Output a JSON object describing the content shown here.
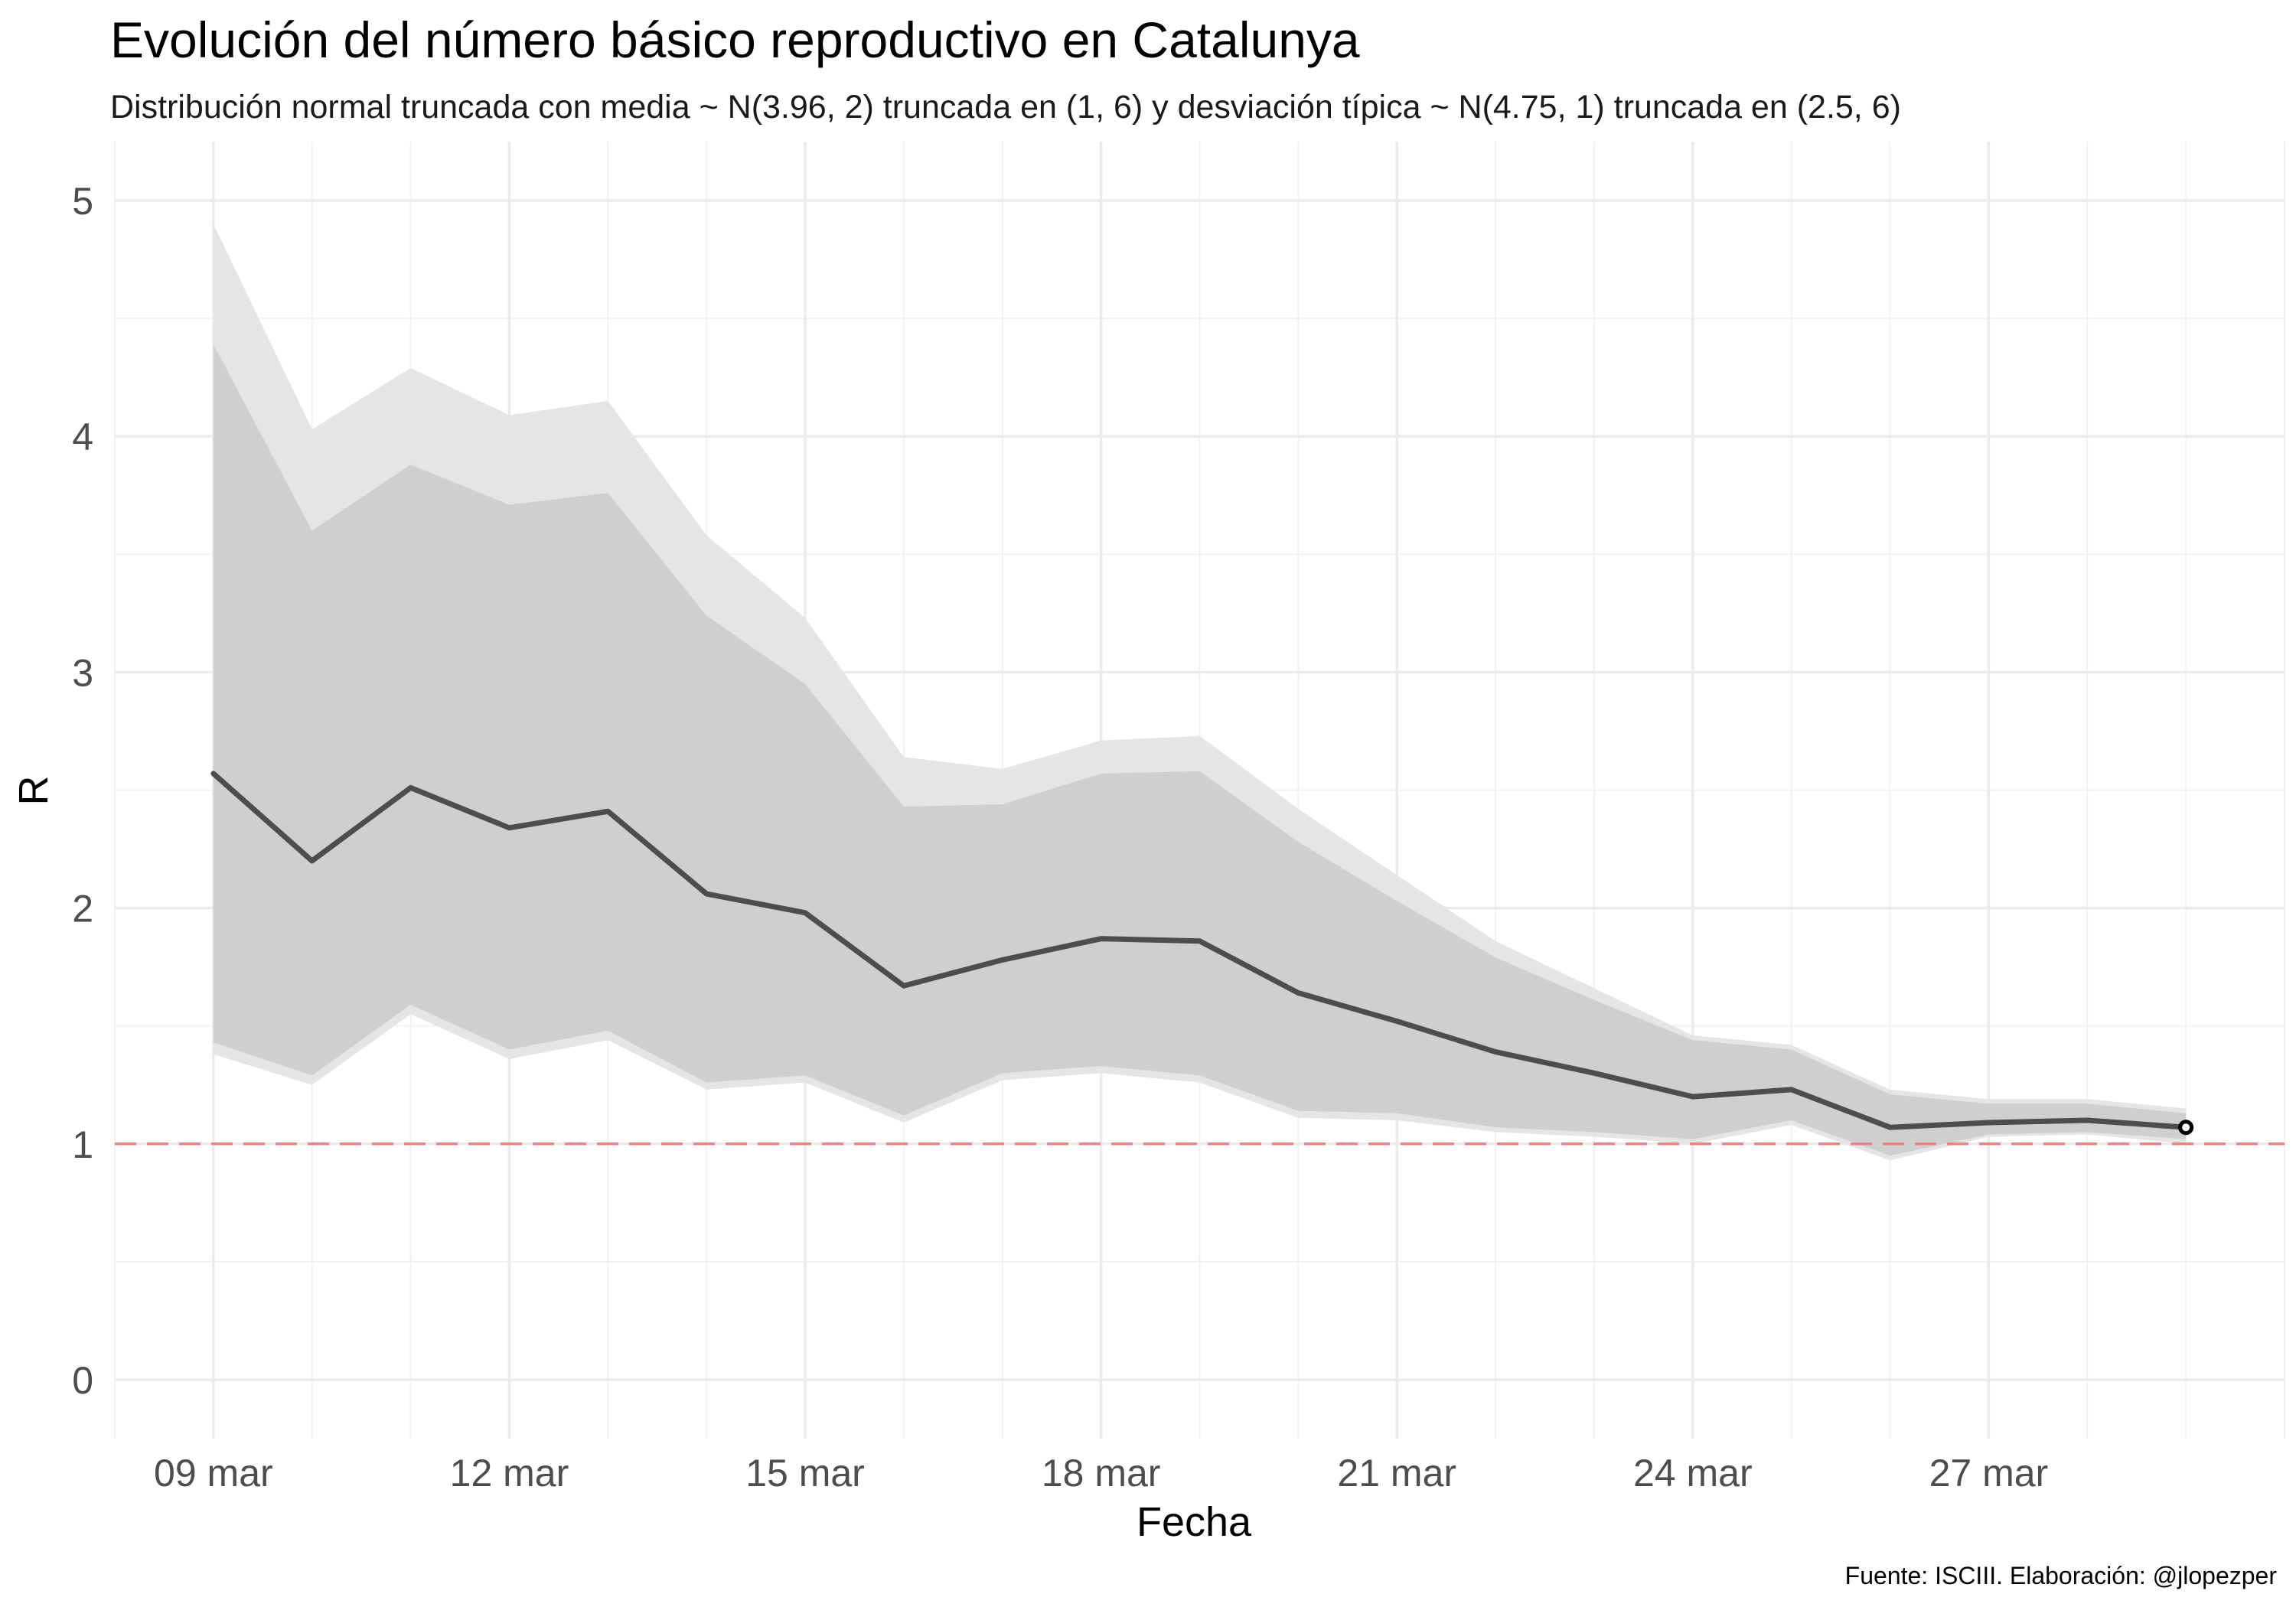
{
  "chart_data": {
    "type": "line",
    "title": "Evolución del número básico reproductivo en Catalunya",
    "subtitle": "Distribución normal truncada con media ~ N(3.96, 2) truncada en (1, 6) y desviación típica ~ N(4.75, 1) truncada en (2.5, 6)",
    "caption": "Fuente: ISCIII. Elaboración: @jlopezper",
    "xlabel": "Fecha",
    "ylabel": "R",
    "x_dates": [
      "2020-03-09",
      "2020-03-10",
      "2020-03-11",
      "2020-03-12",
      "2020-03-13",
      "2020-03-14",
      "2020-03-15",
      "2020-03-16",
      "2020-03-17",
      "2020-03-18",
      "2020-03-19",
      "2020-03-20",
      "2020-03-21",
      "2020-03-22",
      "2020-03-23",
      "2020-03-24",
      "2020-03-25",
      "2020-03-26",
      "2020-03-27",
      "2020-03-28",
      "2020-03-29"
    ],
    "xlim": [
      "2020-03-08",
      "2020-03-30"
    ],
    "ylim": [
      -0.25,
      5.25
    ],
    "x_ticks": [
      {
        "date": "2020-03-09",
        "label": "09 mar"
      },
      {
        "date": "2020-03-12",
        "label": "12 mar"
      },
      {
        "date": "2020-03-15",
        "label": "15 mar"
      },
      {
        "date": "2020-03-18",
        "label": "18 mar"
      },
      {
        "date": "2020-03-21",
        "label": "21 mar"
      },
      {
        "date": "2020-03-24",
        "label": "24 mar"
      },
      {
        "date": "2020-03-27",
        "label": "27 mar"
      }
    ],
    "x_minor_ticks": [
      "2020-03-08",
      "2020-03-10",
      "2020-03-11",
      "2020-03-13",
      "2020-03-14",
      "2020-03-16",
      "2020-03-17",
      "2020-03-19",
      "2020-03-20",
      "2020-03-22",
      "2020-03-23",
      "2020-03-25",
      "2020-03-26",
      "2020-03-28",
      "2020-03-29",
      "2020-03-30"
    ],
    "y_ticks": [
      0,
      1,
      2,
      3,
      4,
      5
    ],
    "y_minor_ticks": [
      0.5,
      1.5,
      2.5,
      3.5,
      4.5
    ],
    "grid": true,
    "reference_line": {
      "y": 1,
      "color": "#f08080",
      "style": "dashed"
    },
    "series": [
      {
        "role": "outer_band",
        "color": "#e5e5e5",
        "lower": [
          1.38,
          1.25,
          1.55,
          1.36,
          1.44,
          1.23,
          1.26,
          1.09,
          1.27,
          1.3,
          1.26,
          1.11,
          1.1,
          1.05,
          1.03,
          1.0,
          1.08,
          0.93,
          1.03,
          1.04,
          1.0
        ],
        "upper": [
          4.9,
          4.03,
          4.29,
          4.09,
          4.15,
          3.58,
          3.23,
          2.64,
          2.59,
          2.71,
          2.73,
          2.42,
          2.14,
          1.86,
          1.66,
          1.46,
          1.42,
          1.23,
          1.19,
          1.19,
          1.15
        ]
      },
      {
        "role": "inner_band",
        "color": "#cfcfcf",
        "lower": [
          1.43,
          1.29,
          1.59,
          1.4,
          1.48,
          1.26,
          1.29,
          1.12,
          1.3,
          1.33,
          1.29,
          1.14,
          1.13,
          1.07,
          1.05,
          1.02,
          1.1,
          0.95,
          1.04,
          1.05,
          1.02
        ],
        "upper": [
          4.39,
          3.6,
          3.88,
          3.71,
          3.76,
          3.24,
          2.95,
          2.43,
          2.44,
          2.57,
          2.58,
          2.28,
          2.03,
          1.79,
          1.61,
          1.44,
          1.4,
          1.21,
          1.17,
          1.17,
          1.13
        ]
      },
      {
        "role": "line",
        "color": "#4d4d4d",
        "values": [
          2.57,
          2.2,
          2.51,
          2.34,
          2.41,
          2.06,
          1.98,
          1.67,
          1.78,
          1.87,
          1.86,
          1.64,
          1.52,
          1.39,
          1.3,
          1.2,
          1.23,
          1.07,
          1.09,
          1.1,
          1.07
        ]
      }
    ],
    "last_point_marker": {
      "date": "2020-03-29",
      "value": 1.07,
      "style": "open-circle"
    }
  }
}
